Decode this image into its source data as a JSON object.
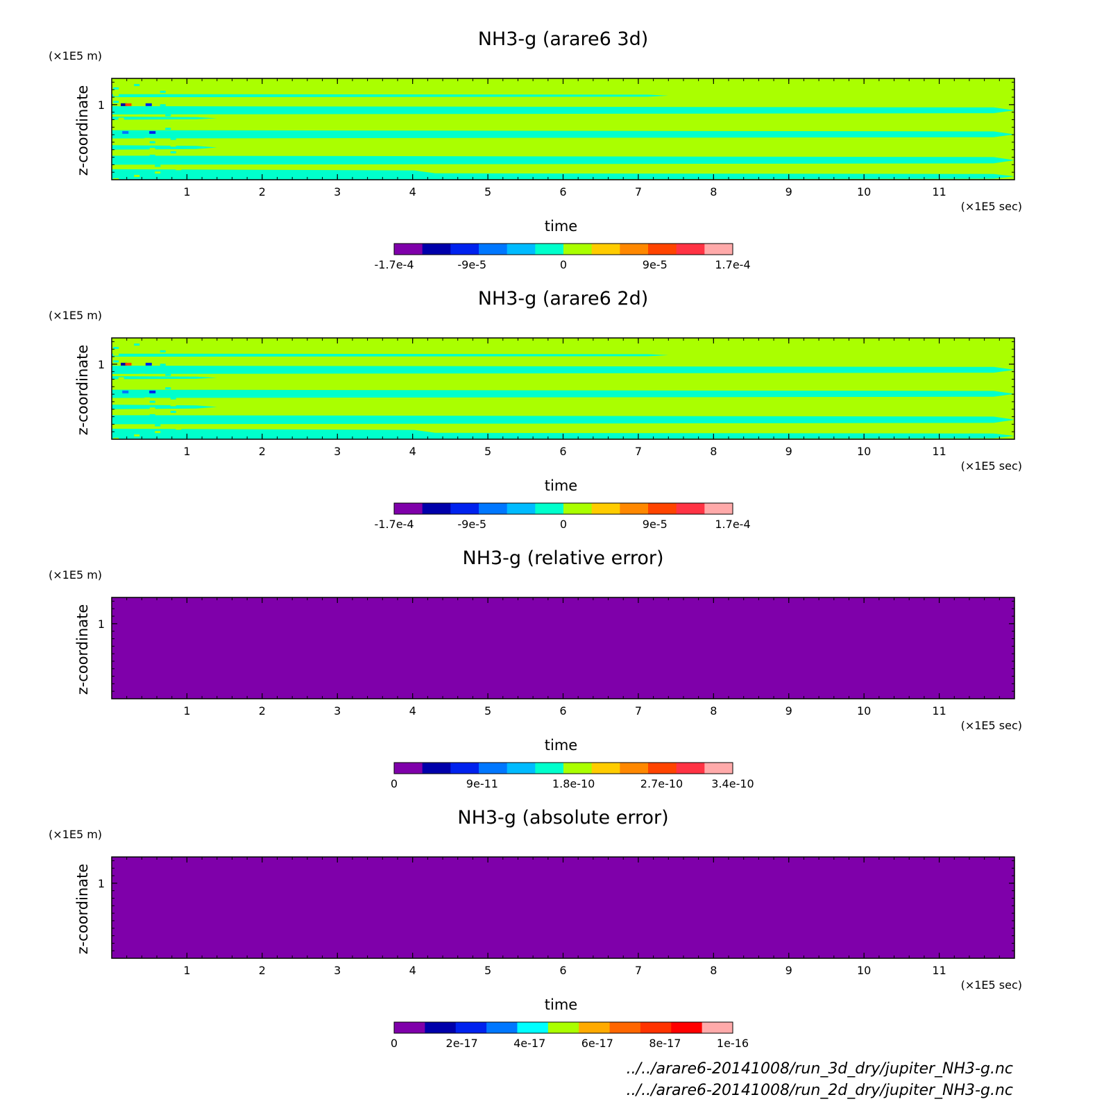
{
  "chart_data": [
    {
      "type": "heatmap",
      "title": "NH3-g (arare6 3d)",
      "xlabel": "time",
      "ylabel": "z-coordinate",
      "x_unit": "(×1E5 sec)",
      "y_unit": "(×1E5 m)",
      "xlim": [
        0,
        12
      ],
      "ylim": [
        0,
        1.35
      ],
      "x_ticks": [
        1,
        2,
        3,
        4,
        5,
        6,
        7,
        8,
        9,
        10,
        11
      ],
      "y_ticks": [
        1
      ],
      "colorbar": {
        "colors": [
          "#7f00aa",
          "#0000aa",
          "#0022ee",
          "#0077ff",
          "#00bbff",
          "#00ffcc",
          "#aaff00",
          "#ffcc00",
          "#ff8800",
          "#ff4400",
          "#ff3344",
          "#ffaaaa"
        ],
        "tick_labels": [
          "-1.7e-4",
          "-9e-5",
          "0",
          "9e-5",
          "1.7e-4"
        ],
        "tick_positions": [
          0,
          0.23,
          0.5,
          0.77,
          1
        ]
      },
      "pattern": "bands"
    },
    {
      "type": "heatmap",
      "title": "NH3-g (arare6 2d)",
      "xlabel": "time",
      "ylabel": "z-coordinate",
      "x_unit": "(×1E5 sec)",
      "y_unit": "(×1E5 m)",
      "xlim": [
        0,
        12
      ],
      "ylim": [
        0,
        1.35
      ],
      "x_ticks": [
        1,
        2,
        3,
        4,
        5,
        6,
        7,
        8,
        9,
        10,
        11
      ],
      "y_ticks": [
        1
      ],
      "colorbar": {
        "colors": [
          "#7f00aa",
          "#0000aa",
          "#0022ee",
          "#0077ff",
          "#00bbff",
          "#00ffcc",
          "#aaff00",
          "#ffcc00",
          "#ff8800",
          "#ff4400",
          "#ff3344",
          "#ffaaaa"
        ],
        "tick_labels": [
          "-1.7e-4",
          "-9e-5",
          "0",
          "9e-5",
          "1.7e-4"
        ],
        "tick_positions": [
          0,
          0.23,
          0.5,
          0.77,
          1
        ]
      },
      "pattern": "bands"
    },
    {
      "type": "heatmap",
      "title": "NH3-g (relative error)",
      "xlabel": "time",
      "ylabel": "z-coordinate",
      "x_unit": "(×1E5 sec)",
      "y_unit": "(×1E5 m)",
      "xlim": [
        0,
        12
      ],
      "ylim": [
        0,
        1.35
      ],
      "x_ticks": [
        1,
        2,
        3,
        4,
        5,
        6,
        7,
        8,
        9,
        10,
        11
      ],
      "y_ticks": [
        1
      ],
      "colorbar": {
        "colors": [
          "#7f00aa",
          "#0000aa",
          "#0022ee",
          "#0077ff",
          "#00bbff",
          "#00ffcc",
          "#aaff00",
          "#ffcc00",
          "#ff8800",
          "#ff4400",
          "#ff3344",
          "#ffaaaa"
        ],
        "tick_labels": [
          "0",
          "9e-11",
          "1.8e-10",
          "2.7e-10",
          "3.4e-10"
        ],
        "tick_positions": [
          0,
          0.26,
          0.53,
          0.79,
          1
        ]
      },
      "pattern": "uniform"
    },
    {
      "type": "heatmap",
      "title": "NH3-g (absolute error)",
      "xlabel": "time",
      "ylabel": "z-coordinate",
      "x_unit": "(×1E5 sec)",
      "y_unit": "(×1E5 m)",
      "xlim": [
        0,
        12
      ],
      "ylim": [
        0,
        1.35
      ],
      "x_ticks": [
        1,
        2,
        3,
        4,
        5,
        6,
        7,
        8,
        9,
        10,
        11
      ],
      "y_ticks": [
        1
      ],
      "colorbar": {
        "colors": [
          "#7f00aa",
          "#0000aa",
          "#0022ee",
          "#0077ff",
          "#00ffff",
          "#aaff00",
          "#ffaa00",
          "#ff6600",
          "#ff3300",
          "#ff0000",
          "#ffaaaa"
        ],
        "tick_labels": [
          "0",
          "2e-17",
          "4e-17",
          "6e-17",
          "8e-17",
          "1e-16"
        ],
        "tick_positions": [
          0,
          0.2,
          0.4,
          0.6,
          0.8,
          1
        ]
      },
      "pattern": "uniform"
    }
  ],
  "footer": {
    "lines": [
      "../../arare6-20141008/run_3d_dry/jupiter_NH3-g.nc",
      "../../arare6-20141008/run_2d_dry/jupiter_NH3-g.nc"
    ]
  }
}
